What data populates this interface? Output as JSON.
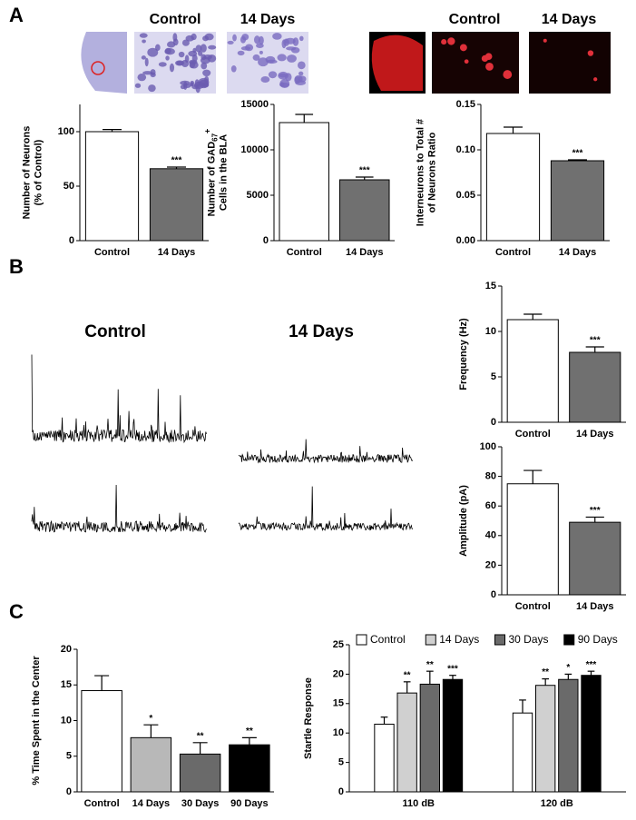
{
  "figure": {
    "panel_labels": [
      "A",
      "B",
      "C"
    ],
    "image_labels": [
      "Control",
      "14 Days",
      "Control",
      "14 Days"
    ],
    "trace_labels": [
      "Control",
      "14 Days"
    ]
  },
  "chart_data": [
    {
      "type": "bar",
      "y_label": [
        "Number of Neurons",
        "(% of Control)"
      ],
      "categories": [
        "Control",
        "14 Days"
      ],
      "ylim": [
        0,
        125
      ],
      "yticks": [
        0,
        50,
        100
      ],
      "series": [
        {
          "colors": [
            "#ffffff",
            "#707070"
          ],
          "values": [
            100,
            66
          ],
          "errors": [
            2,
            1.5
          ],
          "annotations": [
            null,
            "***"
          ]
        }
      ]
    },
    {
      "type": "bar",
      "y_label": [
        "Number of GAD",
        "Cells in the BLA"
      ],
      "y_label_sub": "67",
      "y_label_sup": "+",
      "categories": [
        "Control",
        "14 Days"
      ],
      "ylim": [
        0,
        15000
      ],
      "yticks": [
        0,
        5000,
        10000,
        15000
      ],
      "series": [
        {
          "colors": [
            "#ffffff",
            "#707070"
          ],
          "values": [
            13000,
            6700
          ],
          "errors": [
            900,
            300
          ],
          "annotations": [
            null,
            "***"
          ]
        }
      ]
    },
    {
      "type": "bar",
      "y_label": [
        "Interneurons to Total #",
        "of Neurons Ratio"
      ],
      "categories": [
        "Control",
        "14 Days"
      ],
      "ylim": [
        0,
        0.15
      ],
      "yticks": [
        {
          "value": 0,
          "label": "0.00"
        },
        {
          "value": 0.05,
          "label": "0.05"
        },
        {
          "value": 0.1,
          "label": "0.10"
        },
        {
          "value": 0.15,
          "label": "0.15"
        }
      ],
      "series": [
        {
          "colors": [
            "#ffffff",
            "#707070"
          ],
          "values": [
            0.118,
            0.088
          ],
          "errors": [
            0.007,
            0.001
          ],
          "annotations": [
            null,
            "***"
          ]
        }
      ]
    },
    {
      "type": "bar",
      "y_label": [
        "Frequency (Hz)"
      ],
      "categories": [
        "Control",
        "14 Days"
      ],
      "ylim": [
        0,
        15
      ],
      "yticks": [
        0,
        5,
        10,
        15
      ],
      "series": [
        {
          "colors": [
            "#ffffff",
            "#707070"
          ],
          "values": [
            11.3,
            7.7
          ],
          "errors": [
            0.6,
            0.6
          ],
          "annotations": [
            null,
            "***"
          ]
        }
      ]
    },
    {
      "type": "bar",
      "y_label": [
        "Amplitude (pA)"
      ],
      "categories": [
        "Control",
        "14 Days"
      ],
      "ylim": [
        0,
        100
      ],
      "yticks": [
        0,
        20,
        40,
        60,
        80,
        100
      ],
      "series": [
        {
          "colors": [
            "#ffffff",
            "#707070"
          ],
          "values": [
            75,
            49
          ],
          "errors": [
            9,
            3.5
          ],
          "annotations": [
            null,
            "***"
          ]
        }
      ]
    },
    {
      "type": "bar",
      "y_label": [
        "% Time Spent in the Center"
      ],
      "categories": [
        "Control",
        "14 Days",
        "30 Days",
        "90 Days"
      ],
      "ylim": [
        0,
        20
      ],
      "yticks": [
        0,
        5,
        10,
        15,
        20
      ],
      "series": [
        {
          "colors": [
            "#ffffff",
            "#b8b8b8",
            "#6a6a6a",
            "#000000"
          ],
          "values": [
            14.2,
            7.6,
            5.3,
            6.6
          ],
          "errors": [
            2.1,
            1.8,
            1.6,
            1.0
          ],
          "annotations": [
            null,
            "*",
            "**",
            "**"
          ]
        }
      ]
    },
    {
      "type": "grouped_bar",
      "y_label": [
        "Startle Response"
      ],
      "categories": [
        "110 dB",
        "120 dB"
      ],
      "ylim": [
        0,
        25
      ],
      "yticks": [
        0,
        5,
        10,
        15,
        20,
        25
      ],
      "series": [
        {
          "name": "Control",
          "color": "#ffffff",
          "values": [
            11.5,
            13.4
          ],
          "errors": [
            1.2,
            2.2
          ],
          "annotations": [
            null,
            null
          ]
        },
        {
          "name": "14 Days",
          "color": "#d0d0d0",
          "values": [
            16.8,
            18.1
          ],
          "errors": [
            1.9,
            1.1
          ],
          "annotations": [
            "**",
            "**"
          ]
        },
        {
          "name": "30 Days",
          "color": "#6a6a6a",
          "values": [
            18.3,
            19.1
          ],
          "errors": [
            2.2,
            0.9
          ],
          "annotations": [
            "**",
            "*"
          ]
        },
        {
          "name": "90 Days",
          "color": "#000000",
          "values": [
            19.1,
            19.8
          ],
          "errors": [
            0.7,
            0.7
          ],
          "annotations": [
            "***",
            "***"
          ]
        }
      ]
    }
  ]
}
